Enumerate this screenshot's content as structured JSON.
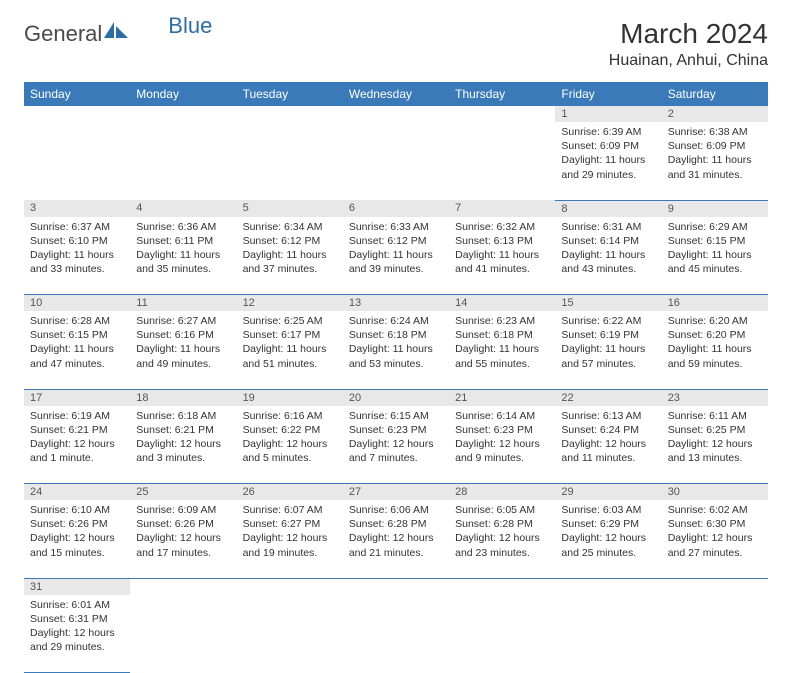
{
  "logo": {
    "text1": "General",
    "text2": "Blue"
  },
  "title": "March 2024",
  "location": "Huainan, Anhui, China",
  "colors": {
    "header_bg": "#3a7ab8",
    "header_fg": "#ffffff",
    "daynum_bg": "#e8e8e8",
    "divider": "#3a7ab8",
    "text": "#333333"
  },
  "weekdays": [
    "Sunday",
    "Monday",
    "Tuesday",
    "Wednesday",
    "Thursday",
    "Friday",
    "Saturday"
  ],
  "weeks": [
    [
      null,
      null,
      null,
      null,
      null,
      {
        "n": "1",
        "sr": "6:39 AM",
        "ss": "6:09 PM",
        "dl": "11 hours and 29 minutes."
      },
      {
        "n": "2",
        "sr": "6:38 AM",
        "ss": "6:09 PM",
        "dl": "11 hours and 31 minutes."
      }
    ],
    [
      {
        "n": "3",
        "sr": "6:37 AM",
        "ss": "6:10 PM",
        "dl": "11 hours and 33 minutes."
      },
      {
        "n": "4",
        "sr": "6:36 AM",
        "ss": "6:11 PM",
        "dl": "11 hours and 35 minutes."
      },
      {
        "n": "5",
        "sr": "6:34 AM",
        "ss": "6:12 PM",
        "dl": "11 hours and 37 minutes."
      },
      {
        "n": "6",
        "sr": "6:33 AM",
        "ss": "6:12 PM",
        "dl": "11 hours and 39 minutes."
      },
      {
        "n": "7",
        "sr": "6:32 AM",
        "ss": "6:13 PM",
        "dl": "11 hours and 41 minutes."
      },
      {
        "n": "8",
        "sr": "6:31 AM",
        "ss": "6:14 PM",
        "dl": "11 hours and 43 minutes."
      },
      {
        "n": "9",
        "sr": "6:29 AM",
        "ss": "6:15 PM",
        "dl": "11 hours and 45 minutes."
      }
    ],
    [
      {
        "n": "10",
        "sr": "6:28 AM",
        "ss": "6:15 PM",
        "dl": "11 hours and 47 minutes."
      },
      {
        "n": "11",
        "sr": "6:27 AM",
        "ss": "6:16 PM",
        "dl": "11 hours and 49 minutes."
      },
      {
        "n": "12",
        "sr": "6:25 AM",
        "ss": "6:17 PM",
        "dl": "11 hours and 51 minutes."
      },
      {
        "n": "13",
        "sr": "6:24 AM",
        "ss": "6:18 PM",
        "dl": "11 hours and 53 minutes."
      },
      {
        "n": "14",
        "sr": "6:23 AM",
        "ss": "6:18 PM",
        "dl": "11 hours and 55 minutes."
      },
      {
        "n": "15",
        "sr": "6:22 AM",
        "ss": "6:19 PM",
        "dl": "11 hours and 57 minutes."
      },
      {
        "n": "16",
        "sr": "6:20 AM",
        "ss": "6:20 PM",
        "dl": "11 hours and 59 minutes."
      }
    ],
    [
      {
        "n": "17",
        "sr": "6:19 AM",
        "ss": "6:21 PM",
        "dl": "12 hours and 1 minute."
      },
      {
        "n": "18",
        "sr": "6:18 AM",
        "ss": "6:21 PM",
        "dl": "12 hours and 3 minutes."
      },
      {
        "n": "19",
        "sr": "6:16 AM",
        "ss": "6:22 PM",
        "dl": "12 hours and 5 minutes."
      },
      {
        "n": "20",
        "sr": "6:15 AM",
        "ss": "6:23 PM",
        "dl": "12 hours and 7 minutes."
      },
      {
        "n": "21",
        "sr": "6:14 AM",
        "ss": "6:23 PM",
        "dl": "12 hours and 9 minutes."
      },
      {
        "n": "22",
        "sr": "6:13 AM",
        "ss": "6:24 PM",
        "dl": "12 hours and 11 minutes."
      },
      {
        "n": "23",
        "sr": "6:11 AM",
        "ss": "6:25 PM",
        "dl": "12 hours and 13 minutes."
      }
    ],
    [
      {
        "n": "24",
        "sr": "6:10 AM",
        "ss": "6:26 PM",
        "dl": "12 hours and 15 minutes."
      },
      {
        "n": "25",
        "sr": "6:09 AM",
        "ss": "6:26 PM",
        "dl": "12 hours and 17 minutes."
      },
      {
        "n": "26",
        "sr": "6:07 AM",
        "ss": "6:27 PM",
        "dl": "12 hours and 19 minutes."
      },
      {
        "n": "27",
        "sr": "6:06 AM",
        "ss": "6:28 PM",
        "dl": "12 hours and 21 minutes."
      },
      {
        "n": "28",
        "sr": "6:05 AM",
        "ss": "6:28 PM",
        "dl": "12 hours and 23 minutes."
      },
      {
        "n": "29",
        "sr": "6:03 AM",
        "ss": "6:29 PM",
        "dl": "12 hours and 25 minutes."
      },
      {
        "n": "30",
        "sr": "6:02 AM",
        "ss": "6:30 PM",
        "dl": "12 hours and 27 minutes."
      }
    ],
    [
      {
        "n": "31",
        "sr": "6:01 AM",
        "ss": "6:31 PM",
        "dl": "12 hours and 29 minutes."
      },
      null,
      null,
      null,
      null,
      null,
      null
    ]
  ],
  "labels": {
    "sunrise": "Sunrise:",
    "sunset": "Sunset:",
    "daylight": "Daylight:"
  }
}
